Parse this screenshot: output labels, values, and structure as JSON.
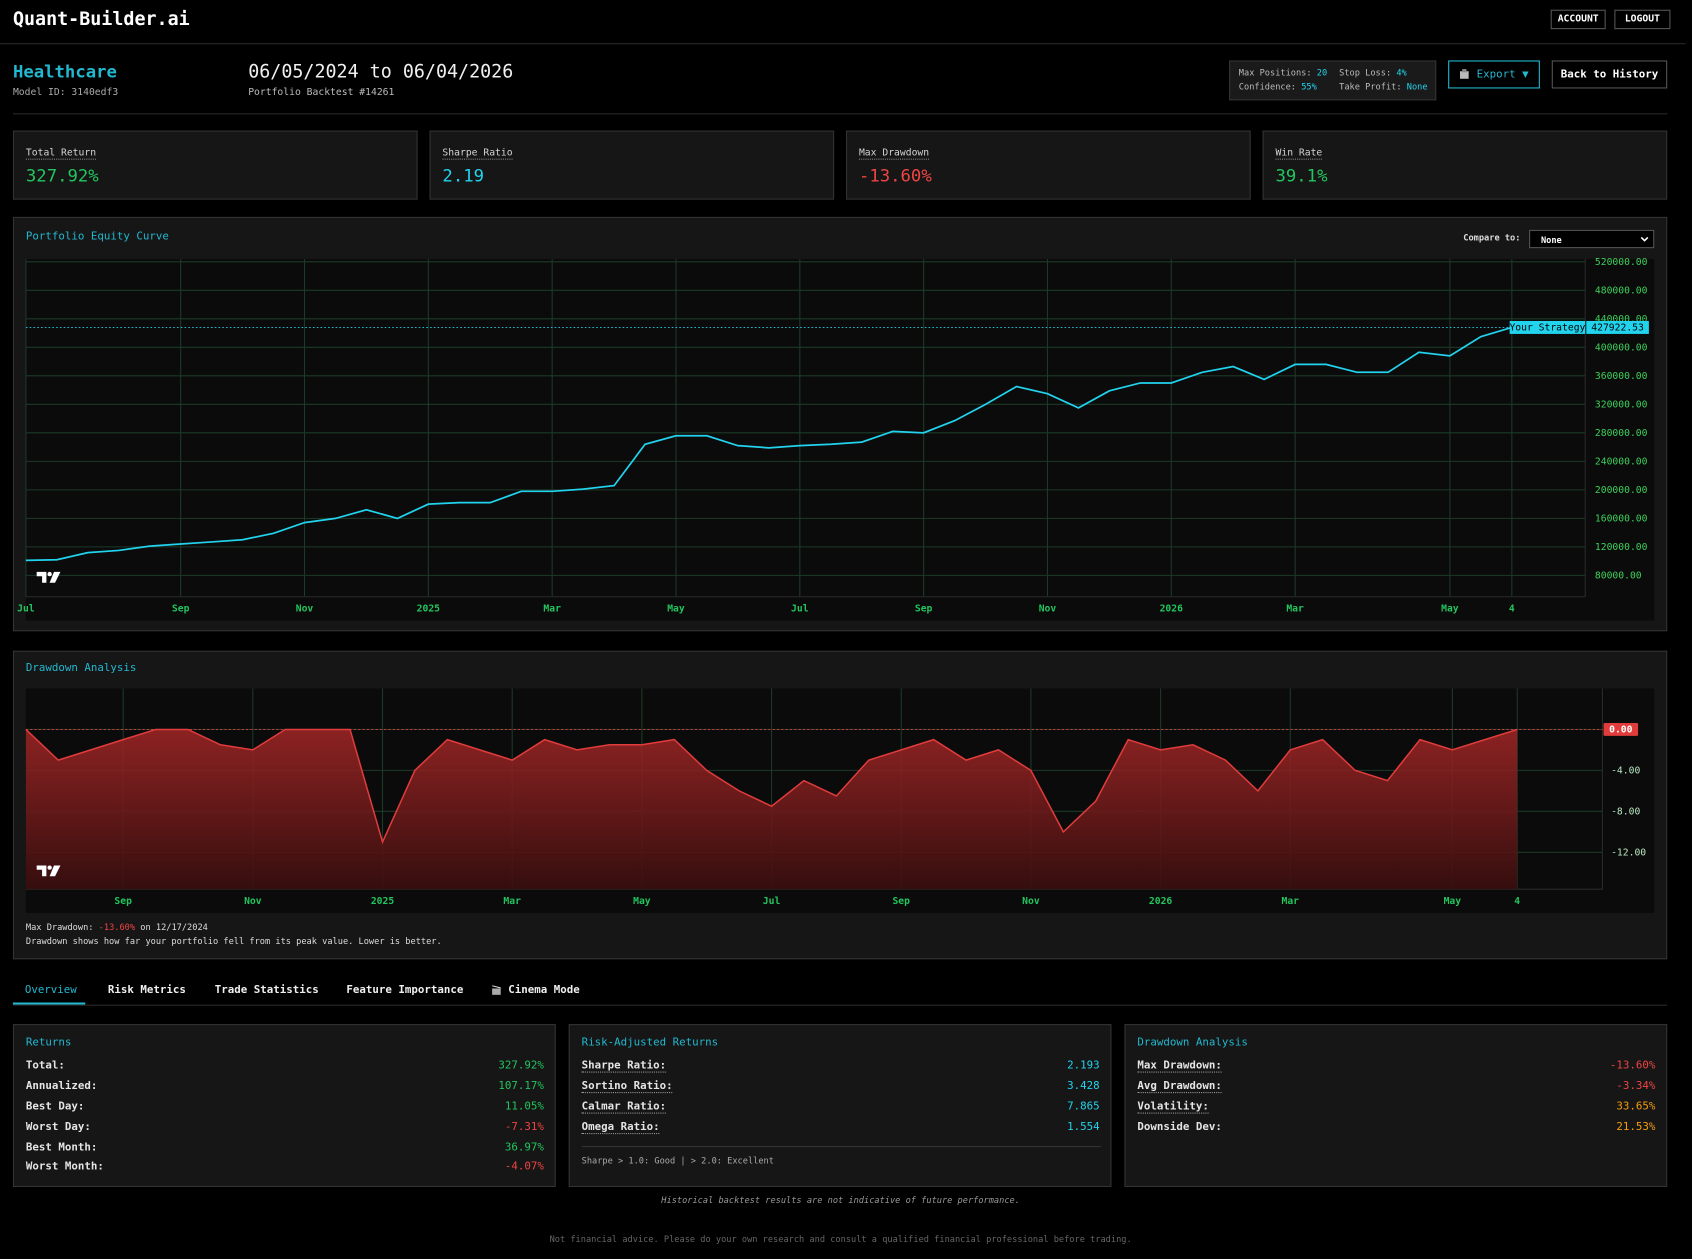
{
  "header": {
    "brand": "Quant-Builder.ai",
    "buttons": [
      "ACCOUNT",
      "LOGOUT"
    ]
  },
  "model": {
    "name": "Healthcare",
    "id": "Model ID: 3140edf3",
    "period": "06/05/2024 to 06/04/2026",
    "subtitle": "Portfolio Backtest #14261"
  },
  "params": [
    {
      "label": "Max Positions:",
      "value": "20"
    },
    {
      "label": "Stop Loss:",
      "value": "4%"
    },
    {
      "label": "Confidence:",
      "value": "55%"
    },
    {
      "label": "Take Profit:",
      "value": "None"
    }
  ],
  "actions": {
    "export": "Export ▼",
    "back": "Back to History"
  },
  "metrics": [
    {
      "label": "Total Return",
      "value": "327.92%"
    },
    {
      "label": "Sharpe Ratio",
      "value": "2.19"
    },
    {
      "label": "Max Drawdown",
      "value": "-13.60%"
    },
    {
      "label": "Win Rate",
      "value": "39.1%"
    }
  ],
  "compare": {
    "label": "Compare to:",
    "selected": "None"
  },
  "chart_data": [
    {
      "type": "line",
      "title": "Portfolio Equity Curve",
      "categories": [
        "Jul",
        null,
        null,
        null,
        null,
        "Sep",
        null,
        null,
        null,
        "Nov",
        null,
        null,
        null,
        "2025",
        null,
        null,
        null,
        "Mar",
        null,
        null,
        null,
        "May",
        null,
        null,
        null,
        "Jul",
        null,
        null,
        null,
        "Sep",
        null,
        null,
        null,
        "Nov",
        null,
        null,
        null,
        "2026",
        null,
        null,
        null,
        "Mar",
        null,
        null,
        null,
        null,
        "May",
        null,
        "4"
      ],
      "series": [
        {
          "name": "Your Strategy",
          "color": "#22d3ee",
          "values": [
            101000,
            102000,
            112000,
            115000,
            121000,
            124000,
            127000,
            130000,
            139000,
            154000,
            160000,
            172000,
            160000,
            180000,
            182000,
            182000,
            198000,
            198000,
            201000,
            206000,
            264000,
            276000,
            276000,
            262000,
            259000,
            262000,
            264000,
            267000,
            282000,
            280000,
            297000,
            320000,
            345000,
            335000,
            315000,
            339000,
            350000,
            350000,
            365000,
            373000,
            355000,
            376000,
            376000,
            365000,
            365000,
            393000,
            388000,
            415000,
            427922.53
          ]
        }
      ],
      "ylim": [
        50000,
        524000
      ],
      "yticks": [
        {
          "value": 80000,
          "label": "80000.00"
        },
        {
          "value": 120000,
          "label": "120000.00"
        },
        {
          "value": 160000,
          "label": "160000.00"
        },
        {
          "value": 200000,
          "label": "200000.00"
        },
        {
          "value": 240000,
          "label": "240000.00"
        },
        {
          "value": 280000,
          "label": "280000.00"
        },
        {
          "value": 320000,
          "label": "320000.00"
        },
        {
          "value": 360000,
          "label": "360000.00"
        },
        {
          "value": 400000,
          "label": "400000.00"
        },
        {
          "value": 440000,
          "label": "440000.00"
        },
        {
          "value": 480000,
          "label": "480000.00"
        },
        {
          "value": 520000,
          "label": "520000.00"
        }
      ],
      "grid": true
    },
    {
      "type": "area",
      "title": "Drawdown Analysis",
      "categories": [
        null,
        null,
        null,
        "Sep",
        null,
        null,
        null,
        "Nov",
        null,
        null,
        null,
        "2025",
        null,
        null,
        null,
        "Mar",
        null,
        null,
        null,
        "May",
        null,
        null,
        null,
        "Jul",
        null,
        null,
        null,
        "Sep",
        null,
        null,
        null,
        "Nov",
        null,
        null,
        null,
        "2026",
        null,
        null,
        null,
        "Mar",
        null,
        null,
        null,
        null,
        "May",
        null,
        "4"
      ],
      "series": [
        {
          "name": "Drawdown",
          "color": "#e03c3c",
          "values": [
            0,
            -3,
            -2,
            -1,
            0,
            0,
            -1.5,
            -2,
            0,
            0,
            0,
            -11,
            -4,
            -1,
            -2,
            -3,
            -1,
            -2,
            -1.5,
            -1.5,
            -1,
            -4,
            -6,
            -7.5,
            -5,
            -6.5,
            -3,
            -2,
            -1,
            -3,
            -2,
            -4,
            -10,
            -7,
            -1,
            -2,
            -1.5,
            -3,
            -6,
            -2,
            -1,
            -4,
            -5,
            -1,
            -2,
            -1,
            0
          ]
        }
      ],
      "ylim": [
        -15.6,
        4
      ],
      "yticks": [
        {
          "value": 0,
          "label": "0.00"
        },
        {
          "value": -4,
          "label": "-4.00"
        },
        {
          "value": -8,
          "label": "-8.00"
        },
        {
          "value": -12,
          "label": "-12.00"
        }
      ],
      "grid": true
    }
  ],
  "drawdown_note": {
    "label": "Max Drawdown:",
    "value": "-13.60%",
    "date": "on 12/17/2024",
    "text": "Drawdown shows how far your portfolio fell from its peak value. Lower is better."
  },
  "tabs": [
    "Overview",
    "Risk Metrics",
    "Trade Statistics",
    "Feature Importance",
    "Cinema Mode"
  ],
  "panels": [
    {
      "title": "Returns",
      "rows": [
        [
          "Total:",
          "327.92%"
        ],
        [
          "Annualized:",
          "107.17%"
        ],
        [
          "Best Day:",
          "11.05%"
        ],
        [
          "Worst Day:",
          "-7.31%"
        ],
        [
          "Best Month:",
          "36.97%"
        ],
        [
          "Worst Month:",
          "-4.07%"
        ]
      ]
    },
    {
      "title": "Risk-Adjusted Returns",
      "rows": [
        [
          "Sharpe Ratio:",
          "2.193"
        ],
        [
          "Sortino Ratio:",
          "3.428"
        ],
        [
          "Calmar Ratio:",
          "7.865"
        ],
        [
          "Omega Ratio:",
          "1.554"
        ]
      ],
      "note": "Sharpe > 1.0: Good | > 2.0: Excellent"
    },
    {
      "title": "Drawdown Analysis",
      "rows": [
        [
          "Max Drawdown:",
          "-13.60%"
        ],
        [
          "Avg Drawdown:",
          "-3.34%"
        ],
        [
          "Volatility:",
          "33.65%"
        ],
        [
          "Downside Dev:",
          "21.53%"
        ]
      ]
    }
  ],
  "footer": [
    "Historical backtest results are not indicative of future performance.",
    "Not financial advice. Please do your own research and consult a qualified financial professional before trading."
  ]
}
